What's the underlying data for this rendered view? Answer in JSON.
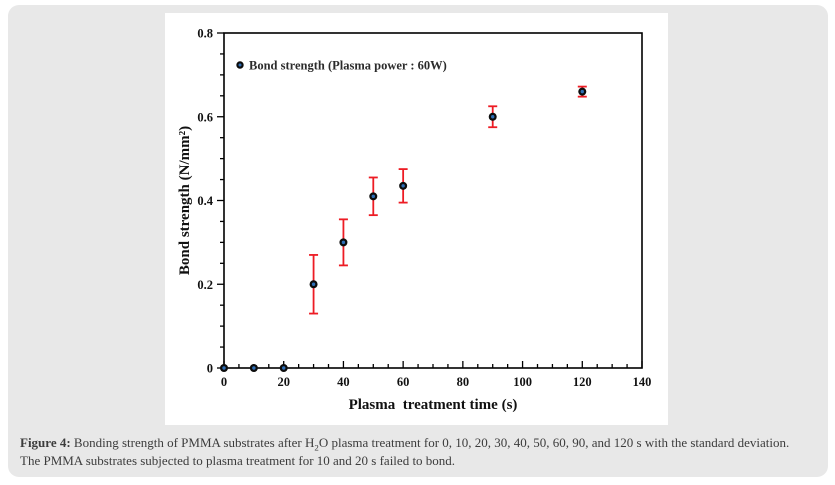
{
  "figure": {
    "caption": {
      "label": "Figure 4:",
      "part1": " Bonding strength of PMMA substrates after H",
      "sub": "2",
      "part2": "O plasma treatment for 0, 10, 20, 30, 40, 50, 60, 90, and 120 s with the standard deviation.",
      "line2": "The PMMA substrates subjected to plasma treatment for 10 and 20 s failed to bond."
    }
  },
  "colors": {
    "panel_bg": "#e8e8e8",
    "chart_bg": "#ffffff",
    "axis": "#000000",
    "error_bar": "#ed1c24",
    "marker_ring": "#0d0d0d",
    "marker_fill": "#2f6fb6",
    "tick_text": "#111111",
    "caption_text": "#3c3c3c"
  },
  "chart_data": {
    "type": "scatter",
    "title": "",
    "legend": "Bond strength (Plasma power : 60W)",
    "legend_position": "top-left-inside",
    "xlabel": "Plasma  treatment time (s)",
    "ylabel": "Bond strength (N/mm²)",
    "xlim": [
      0,
      140
    ],
    "ylim": [
      0,
      0.8
    ],
    "x_ticks": [
      0,
      20,
      40,
      60,
      80,
      100,
      120,
      140
    ],
    "y_ticks": [
      "0",
      "0.2",
      "0.4",
      "0.6",
      "0.8"
    ],
    "x_major": 20,
    "x_minor": 5,
    "y_major": 0.2,
    "y_minor": 0.05,
    "grid": false,
    "series": [
      {
        "name": "Bond strength (Plasma power : 60W)",
        "x": [
          0,
          10,
          20,
          30,
          40,
          50,
          60,
          90,
          120
        ],
        "y": [
          0,
          0,
          0,
          0.2,
          0.3,
          0.41,
          0.435,
          0.6,
          0.66
        ],
        "yerr": [
          0,
          0,
          0,
          0.07,
          0.055,
          0.045,
          0.04,
          0.025,
          0.012
        ]
      }
    ]
  }
}
